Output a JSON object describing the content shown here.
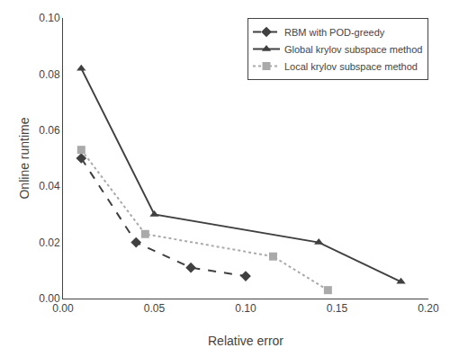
{
  "chart_data": {
    "type": "line",
    "x_label": "Relative error",
    "y_label": "Online runtime",
    "series": [
      {
        "name": "RBM with POD-greedy",
        "color": "#404040",
        "marker": "diamond",
        "line_style": "dashed",
        "x": [
          0.01,
          0.04,
          0.07,
          0.1
        ],
        "values": [
          0.05,
          0.02,
          0.011,
          0.008
        ]
      },
      {
        "name": "Global krylov subspace method",
        "color": "#404040",
        "marker": "triangle-up",
        "line_style": "solid",
        "x": [
          0.01,
          0.05,
          0.14,
          0.185
        ],
        "values": [
          0.082,
          0.03,
          0.02,
          0.006
        ]
      },
      {
        "name": "Local krylov subspace method",
        "color": "#aaaaaa",
        "marker": "square",
        "line_style": "dotted",
        "x": [
          0.01,
          0.045,
          0.115,
          0.145
        ],
        "values": [
          0.053,
          0.023,
          0.015,
          0.003
        ]
      }
    ],
    "xlim": [
      0,
      0.2
    ],
    "ylim": [
      0,
      0.1
    ],
    "xticks": [
      {
        "value": 0,
        "label": "0.00"
      },
      0.05,
      {
        "value": 0.1,
        "label": "0.10"
      },
      0.15,
      {
        "value": 0.2,
        "label": "0.20"
      }
    ],
    "yticks": [
      {
        "value": 0,
        "label": "0.00"
      },
      0.02,
      0.04,
      0.06,
      0.08,
      {
        "value": 0.1,
        "label": "0.10"
      }
    ],
    "grid": false,
    "legend": "upper right"
  }
}
